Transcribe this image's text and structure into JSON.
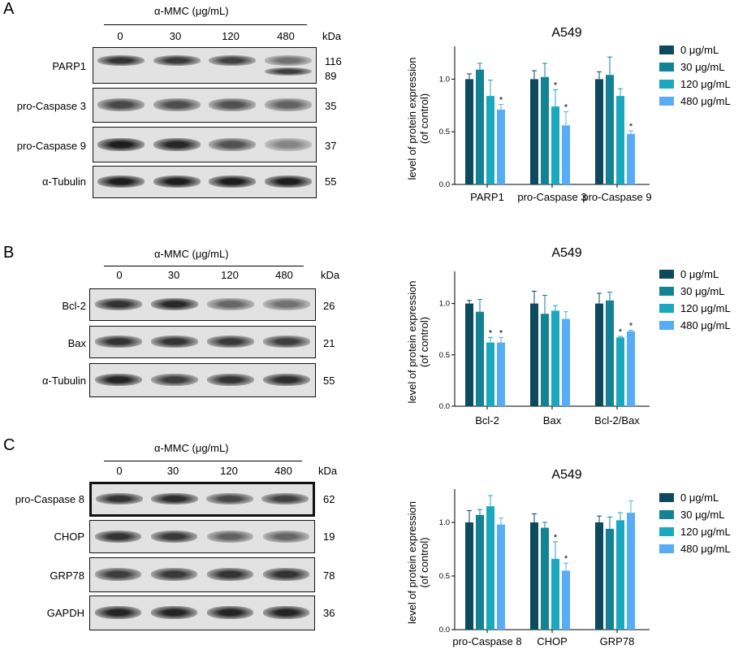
{
  "panels": [
    {
      "letter": "A",
      "treatment": "α-MMC (μg/mL)",
      "concentrations": [
        "0",
        "30",
        "120",
        "480"
      ],
      "kda_label": "kDa",
      "blots": [
        {
          "name": "PARP1",
          "kda": [
            "116",
            "89"
          ]
        },
        {
          "name": "pro-Caspase 3",
          "kda": [
            "35"
          ]
        },
        {
          "name": "pro-Caspase 9",
          "kda": [
            "37"
          ]
        },
        {
          "name": "α-Tubulin",
          "kda": [
            "55"
          ]
        }
      ]
    },
    {
      "letter": "B",
      "treatment": "α-MMC (μg/mL)",
      "concentrations": [
        "0",
        "30",
        "120",
        "480"
      ],
      "kda_label": "kDa",
      "blots": [
        {
          "name": "Bcl-2",
          "kda": [
            "26"
          ]
        },
        {
          "name": "Bax",
          "kda": [
            "21"
          ]
        },
        {
          "name": "α-Tubulin",
          "kda": [
            "55"
          ]
        }
      ]
    },
    {
      "letter": "C",
      "treatment": "α-MMC (μg/mL)",
      "concentrations": [
        "0",
        "30",
        "120",
        "480"
      ],
      "kda_label": "kDa",
      "blots": [
        {
          "name": "pro-Caspase 8",
          "kda": [
            "62"
          ]
        },
        {
          "name": "CHOP",
          "kda": [
            "19"
          ]
        },
        {
          "name": "GRP78",
          "kda": [
            "78"
          ]
        },
        {
          "name": "GAPDH",
          "kda": [
            "36"
          ]
        }
      ]
    }
  ],
  "chart_data": [
    {
      "type": "bar",
      "title": "A549",
      "ylabel": "level of protein expression (of control)",
      "ylabel_lines": [
        "level of protein expression",
        "(of control)"
      ],
      "ylim": [
        0,
        1.25
      ],
      "yticks": [
        "0.0",
        "0.5",
        "1.0"
      ],
      "categories": [
        "PARP1",
        "pro-Caspase 3",
        "pro-Caspase 9"
      ],
      "legend_position": "right",
      "series": [
        {
          "name": "0 μg/mL",
          "color": "#0d4a5e",
          "values": [
            1.0,
            1.0,
            1.0
          ],
          "errors": [
            0.05,
            0.08,
            0.07
          ],
          "sig": [
            false,
            false,
            false
          ]
        },
        {
          "name": "30 μg/mL",
          "color": "#138294",
          "values": [
            1.09,
            1.02,
            1.04
          ],
          "errors": [
            0.06,
            0.13,
            0.17
          ],
          "sig": [
            false,
            false,
            false
          ]
        },
        {
          "name": "120 μg/mL",
          "color": "#1aa8c0",
          "values": [
            0.84,
            0.74,
            0.84
          ],
          "errors": [
            0.15,
            0.16,
            0.07
          ],
          "sig": [
            false,
            true,
            false
          ]
        },
        {
          "name": "480 μg/mL",
          "color": "#58acf5",
          "values": [
            0.71,
            0.56,
            0.48
          ],
          "errors": [
            0.05,
            0.13,
            0.03
          ],
          "sig": [
            true,
            true,
            true
          ]
        }
      ]
    },
    {
      "type": "bar",
      "title": "A549",
      "ylabel": "level of protein expression (of control)",
      "ylabel_lines": [
        "level of protein expression",
        "(of control)"
      ],
      "ylim": [
        0,
        1.25
      ],
      "yticks": [
        "0.0",
        "0.5",
        "1.0"
      ],
      "categories": [
        "Bcl-2",
        "Bax",
        "Bcl-2/Bax"
      ],
      "legend_position": "right",
      "series": [
        {
          "name": "0 μg/mL",
          "color": "#0d4a5e",
          "values": [
            1.0,
            1.0,
            1.0
          ],
          "errors": [
            0.03,
            0.12,
            0.1
          ],
          "sig": [
            false,
            false,
            false
          ]
        },
        {
          "name": "30 μg/mL",
          "color": "#138294",
          "values": [
            0.92,
            0.9,
            1.03
          ],
          "errors": [
            0.12,
            0.18,
            0.08
          ],
          "sig": [
            false,
            false,
            false
          ]
        },
        {
          "name": "120 μg/mL",
          "color": "#1aa8c0",
          "values": [
            0.62,
            0.93,
            0.67
          ],
          "errors": [
            0.05,
            0.05,
            0.01
          ],
          "sig": [
            true,
            false,
            true
          ]
        },
        {
          "name": "480 μg/mL",
          "color": "#58acf5",
          "values": [
            0.62,
            0.85,
            0.73
          ],
          "errors": [
            0.05,
            0.07,
            0.01
          ],
          "sig": [
            true,
            false,
            true
          ]
        }
      ]
    },
    {
      "type": "bar",
      "title": "A549",
      "ylabel": "level of protein expression (of control)",
      "ylabel_lines": [
        "level of protein expression",
        "(of control)"
      ],
      "ylim": [
        0,
        1.25
      ],
      "yticks": [
        "0.0",
        "0.5",
        "1.0"
      ],
      "categories": [
        "pro-Caspase 8",
        "CHOP",
        "GRP78"
      ],
      "legend_position": "right",
      "series": [
        {
          "name": "0 μg/mL",
          "color": "#0d4a5e",
          "values": [
            1.0,
            1.0,
            1.0
          ],
          "errors": [
            0.11,
            0.08,
            0.06
          ],
          "sig": [
            false,
            false,
            false
          ]
        },
        {
          "name": "30 μg/mL",
          "color": "#138294",
          "values": [
            1.07,
            0.95,
            0.94
          ],
          "errors": [
            0.05,
            0.05,
            0.11
          ],
          "sig": [
            false,
            false,
            false
          ]
        },
        {
          "name": "120 μg/mL",
          "color": "#1aa8c0",
          "values": [
            1.15,
            0.66,
            1.02
          ],
          "errors": [
            0.1,
            0.16,
            0.07
          ],
          "sig": [
            false,
            true,
            false
          ]
        },
        {
          "name": "480 μg/mL",
          "color": "#58acf5",
          "values": [
            0.98,
            0.55,
            1.09
          ],
          "errors": [
            0.06,
            0.07,
            0.11
          ],
          "sig": [
            false,
            true,
            false
          ]
        }
      ]
    }
  ]
}
